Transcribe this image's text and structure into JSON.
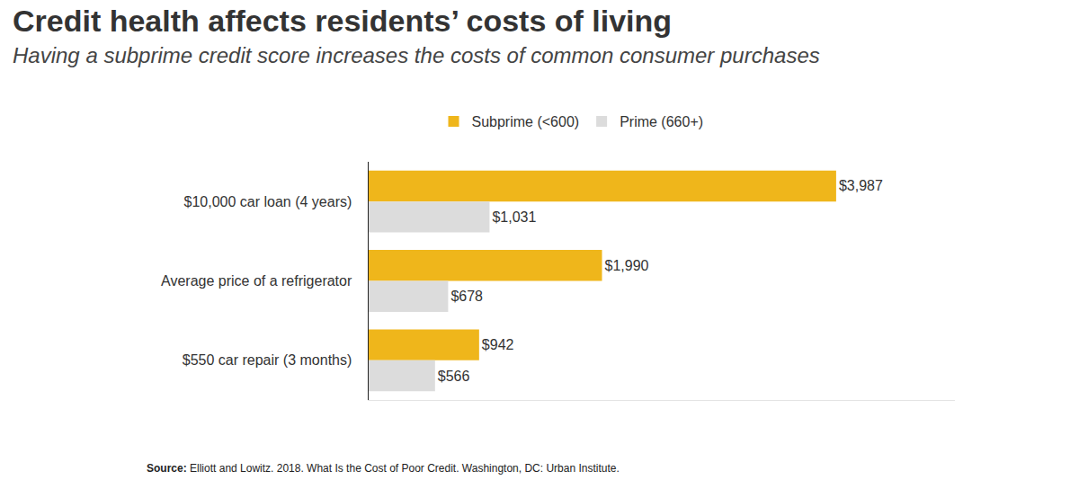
{
  "chart_data": {
    "type": "bar",
    "orientation": "horizontal",
    "title": "Credit health affects residents’ costs of living",
    "subtitle": "Having a subprime credit score increases the costs of common consumer purchases",
    "categories": [
      "$10,000 car loan (4 years)",
      "Average price of a refrigerator",
      "$550 car repair (3 months)"
    ],
    "series": [
      {
        "name": "Subprime (<600)",
        "color": "#efb61b",
        "values": [
          3987,
          1990,
          942
        ],
        "value_labels": [
          "$3,987",
          "$1,990",
          "$942"
        ]
      },
      {
        "name": "Prime (660+)",
        "color": "#dcdcdc",
        "values": [
          1031,
          678,
          566
        ],
        "value_labels": [
          "$1,031",
          "$678",
          "$566"
        ]
      }
    ],
    "xlim": [
      0,
      5000
    ],
    "xticks": [],
    "grid": false,
    "data_labels": true,
    "tick_labels": "y",
    "legend": "top",
    "source_label": "Source:",
    "source": "Elliott and Lowitz. 2018. What Is the Cost of Poor Credit. Washington, DC: Urban Institute."
  }
}
